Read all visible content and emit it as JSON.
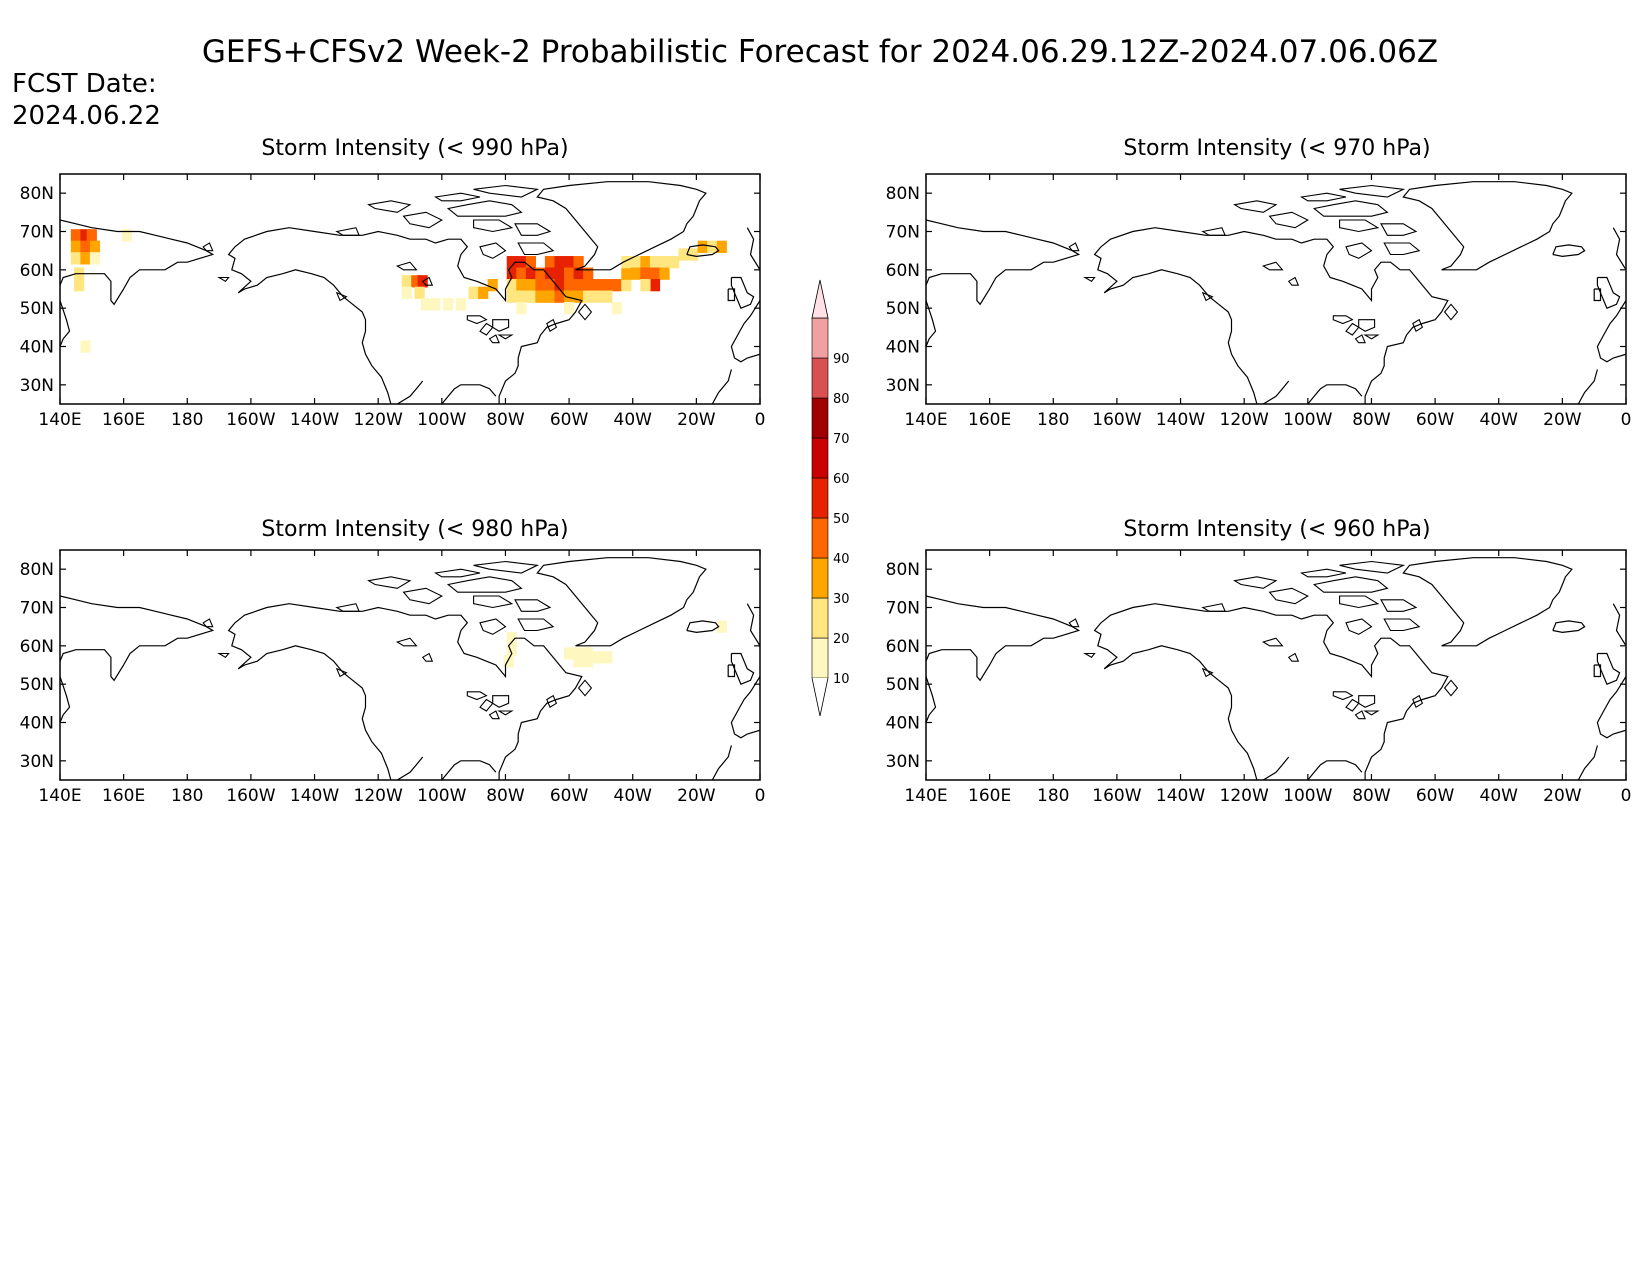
{
  "header": {
    "title": "GEFS+CFSv2 Week-2 Probabilistic Forecast for 2024.06.29.12Z-2024.07.06.06Z",
    "fcst_label": "FCST Date:",
    "fcst_date": "2024.06.22",
    "fcst_color": "#ff2020"
  },
  "map_axes": {
    "lon_ticks": [
      "140E",
      "160E",
      "180",
      "160W",
      "140W",
      "120W",
      "100W",
      "80W",
      "60W",
      "40W",
      "20W",
      "0"
    ],
    "lat_ticks": [
      "80N",
      "70N",
      "60N",
      "50N",
      "40N",
      "30N"
    ],
    "lon_range_deg_east": [
      140,
      360
    ],
    "lat_range_deg": [
      25,
      85
    ]
  },
  "panels": [
    {
      "id": "p990",
      "title": "Storm Intensity (< 990 hPa)",
      "threshold_hpa": 990,
      "cells": [
        {
          "lon": 145,
          "lat": 69,
          "p": 45
        },
        {
          "lon": 148,
          "lat": 69,
          "p": 50
        },
        {
          "lon": 150,
          "lat": 69,
          "p": 45
        },
        {
          "lon": 145,
          "lat": 66,
          "p": 35
        },
        {
          "lon": 148,
          "lat": 66,
          "p": 40
        },
        {
          "lon": 151,
          "lat": 66,
          "p": 30
        },
        {
          "lon": 145,
          "lat": 63,
          "p": 25
        },
        {
          "lon": 148,
          "lat": 63,
          "p": 30
        },
        {
          "lon": 151,
          "lat": 63,
          "p": 15
        },
        {
          "lon": 146,
          "lat": 59,
          "p": 25
        },
        {
          "lon": 146,
          "lat": 56,
          "p": 20
        },
        {
          "lon": 148,
          "lat": 40,
          "p": 15
        },
        {
          "lon": 161,
          "lat": 69,
          "p": 15
        },
        {
          "lon": 249,
          "lat": 57,
          "p": 20
        },
        {
          "lon": 252,
          "lat": 57,
          "p": 40
        },
        {
          "lon": 254,
          "lat": 57,
          "p": 55
        },
        {
          "lon": 249,
          "lat": 54,
          "p": 15
        },
        {
          "lon": 253,
          "lat": 54,
          "p": 25
        },
        {
          "lon": 255,
          "lat": 51,
          "p": 15
        },
        {
          "lon": 258,
          "lat": 51,
          "p": 15
        },
        {
          "lon": 262,
          "lat": 51,
          "p": 15
        },
        {
          "lon": 266,
          "lat": 51,
          "p": 15
        },
        {
          "lon": 270,
          "lat": 54,
          "p": 20
        },
        {
          "lon": 273,
          "lat": 54,
          "p": 35
        },
        {
          "lon": 276,
          "lat": 56,
          "p": 30
        },
        {
          "lon": 282,
          "lat": 62,
          "p": 50
        },
        {
          "lon": 285,
          "lat": 62,
          "p": 50
        },
        {
          "lon": 288,
          "lat": 62,
          "p": 40
        },
        {
          "lon": 282,
          "lat": 59,
          "p": 55
        },
        {
          "lon": 285,
          "lat": 59,
          "p": 45
        },
        {
          "lon": 288,
          "lat": 59,
          "p": 50
        },
        {
          "lon": 291,
          "lat": 59,
          "p": 45
        },
        {
          "lon": 282,
          "lat": 56,
          "p": 25
        },
        {
          "lon": 285,
          "lat": 56,
          "p": 30
        },
        {
          "lon": 288,
          "lat": 56,
          "p": 35
        },
        {
          "lon": 291,
          "lat": 56,
          "p": 45
        },
        {
          "lon": 282,
          "lat": 53,
          "p": 20
        },
        {
          "lon": 285,
          "lat": 53,
          "p": 25
        },
        {
          "lon": 288,
          "lat": 53,
          "p": 20
        },
        {
          "lon": 285,
          "lat": 50,
          "p": 15
        },
        {
          "lon": 294,
          "lat": 62,
          "p": 45
        },
        {
          "lon": 297,
          "lat": 62,
          "p": 55
        },
        {
          "lon": 300,
          "lat": 62,
          "p": 50
        },
        {
          "lon": 303,
          "lat": 62,
          "p": 45
        },
        {
          "lon": 294,
          "lat": 59,
          "p": 55
        },
        {
          "lon": 297,
          "lat": 59,
          "p": 50
        },
        {
          "lon": 300,
          "lat": 59,
          "p": 45
        },
        {
          "lon": 303,
          "lat": 59,
          "p": 50
        },
        {
          "lon": 306,
          "lat": 59,
          "p": 45
        },
        {
          "lon": 294,
          "lat": 56,
          "p": 45
        },
        {
          "lon": 297,
          "lat": 56,
          "p": 50
        },
        {
          "lon": 300,
          "lat": 56,
          "p": 45
        },
        {
          "lon": 303,
          "lat": 56,
          "p": 40
        },
        {
          "lon": 306,
          "lat": 56,
          "p": 45
        },
        {
          "lon": 309,
          "lat": 56,
          "p": 40
        },
        {
          "lon": 294,
          "lat": 53,
          "p": 35
        },
        {
          "lon": 297,
          "lat": 53,
          "p": 40
        },
        {
          "lon": 300,
          "lat": 53,
          "p": 35
        },
        {
          "lon": 303,
          "lat": 53,
          "p": 30
        },
        {
          "lon": 306,
          "lat": 53,
          "p": 25
        },
        {
          "lon": 291,
          "lat": 53,
          "p": 30
        },
        {
          "lon": 300,
          "lat": 50,
          "p": 15
        },
        {
          "lon": 309,
          "lat": 53,
          "p": 25
        },
        {
          "lon": 312,
          "lat": 56,
          "p": 45
        },
        {
          "lon": 315,
          "lat": 56,
          "p": 40
        },
        {
          "lon": 318,
          "lat": 56,
          "p": 25
        },
        {
          "lon": 312,
          "lat": 53,
          "p": 25
        },
        {
          "lon": 315,
          "lat": 50,
          "p": 15
        },
        {
          "lon": 318,
          "lat": 59,
          "p": 30
        },
        {
          "lon": 318,
          "lat": 62,
          "p": 25
        },
        {
          "lon": 321,
          "lat": 62,
          "p": 20
        },
        {
          "lon": 324,
          "lat": 62,
          "p": 30
        },
        {
          "lon": 327,
          "lat": 62,
          "p": 20
        },
        {
          "lon": 330,
          "lat": 62,
          "p": 25
        },
        {
          "lon": 321,
          "lat": 59,
          "p": 35
        },
        {
          "lon": 324,
          "lat": 59,
          "p": 40
        },
        {
          "lon": 327,
          "lat": 59,
          "p": 45
        },
        {
          "lon": 330,
          "lat": 59,
          "p": 30
        },
        {
          "lon": 327,
          "lat": 56,
          "p": 50
        },
        {
          "lon": 324,
          "lat": 56,
          "p": 25
        },
        {
          "lon": 333,
          "lat": 62,
          "p": 20
        },
        {
          "lon": 336,
          "lat": 64,
          "p": 20
        },
        {
          "lon": 339,
          "lat": 64,
          "p": 25
        },
        {
          "lon": 342,
          "lat": 66,
          "p": 30
        },
        {
          "lon": 345,
          "lat": 66,
          "p": 20
        },
        {
          "lon": 348,
          "lat": 66,
          "p": 30
        }
      ]
    },
    {
      "id": "p970",
      "title": "Storm Intensity (< 970 hPa)",
      "threshold_hpa": 970,
      "cells": []
    },
    {
      "id": "p980",
      "title": "Storm Intensity (< 980 hPa)",
      "threshold_hpa": 980,
      "cells": [
        {
          "lon": 282,
          "lat": 62,
          "p": 15
        },
        {
          "lon": 282,
          "lat": 59,
          "p": 15
        },
        {
          "lon": 281,
          "lat": 56,
          "p": 15
        },
        {
          "lon": 300,
          "lat": 58,
          "p": 15
        },
        {
          "lon": 303,
          "lat": 58,
          "p": 15
        },
        {
          "lon": 306,
          "lat": 58,
          "p": 15
        },
        {
          "lon": 303,
          "lat": 56,
          "p": 15
        },
        {
          "lon": 306,
          "lat": 56,
          "p": 15
        },
        {
          "lon": 309,
          "lat": 57,
          "p": 15
        },
        {
          "lon": 312,
          "lat": 57,
          "p": 15
        },
        {
          "lon": 348,
          "lat": 65,
          "p": 15
        }
      ]
    },
    {
      "id": "p960",
      "title": "Storm Intensity (< 960 hPa)",
      "threshold_hpa": 960,
      "cells": []
    }
  ],
  "colorbar": {
    "levels": [
      10,
      20,
      30,
      40,
      50,
      60,
      70,
      80,
      90
    ],
    "labels": [
      "10",
      "20",
      "30",
      "40",
      "50",
      "60",
      "70",
      "80",
      "90"
    ],
    "colors": [
      "#fff7c0",
      "#ffe680",
      "#ffa500",
      "#ff6600",
      "#e62200",
      "#c80000",
      "#a00000",
      "#d85050",
      "#f0a0a0",
      "#ffe0e6"
    ]
  }
}
